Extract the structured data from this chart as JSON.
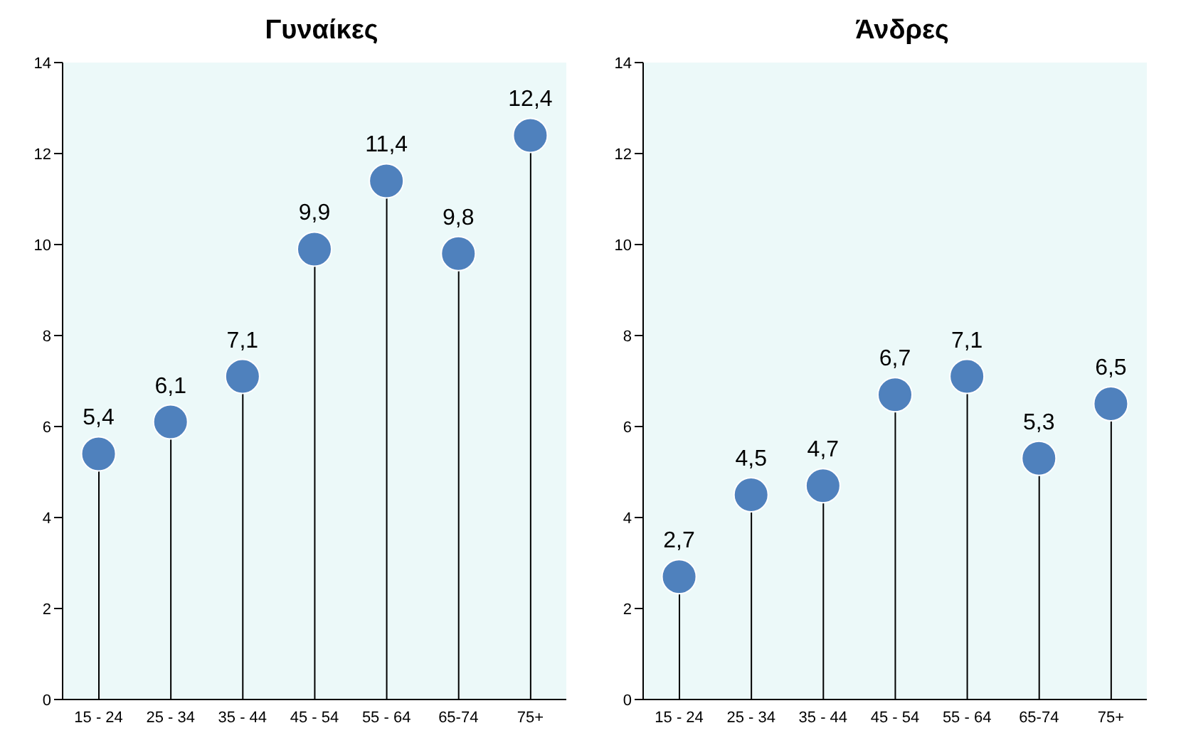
{
  "chart_data": [
    {
      "type": "lollipop",
      "title": "Γυναίκες",
      "categories": [
        "15 - 24",
        "25 - 34",
        "35 - 44",
        "45 - 54",
        "55 - 64",
        "65-74",
        "75+"
      ],
      "values": [
        5.4,
        6.1,
        7.1,
        9.9,
        11.4,
        9.8,
        12.4
      ],
      "value_labels": [
        "5,4",
        "6,1",
        "7,1",
        "9,9",
        "11,4",
        "9,8",
        "12,4"
      ],
      "color": "#4f81bd",
      "marker": "circle",
      "ylim": [
        0,
        14
      ],
      "yticks": [
        0,
        2,
        4,
        6,
        8,
        10,
        12,
        14
      ]
    },
    {
      "type": "lollipop",
      "title": "Άνδρες",
      "categories": [
        "15 - 24",
        "25 - 34",
        "35 - 44",
        "45 - 54",
        "55 - 64",
        "65-74",
        "75+"
      ],
      "values": [
        2.7,
        4.5,
        4.7,
        6.7,
        7.1,
        5.3,
        6.5
      ],
      "value_labels": [
        "2,7",
        "4,5",
        "4,7",
        "6,7",
        "7,1",
        "5,3",
        "6,5"
      ],
      "color": "#4f81bd",
      "marker": "circle",
      "ylim": [
        0,
        14
      ],
      "yticks": [
        0,
        2,
        4,
        6,
        8,
        10,
        12,
        14
      ]
    }
  ]
}
